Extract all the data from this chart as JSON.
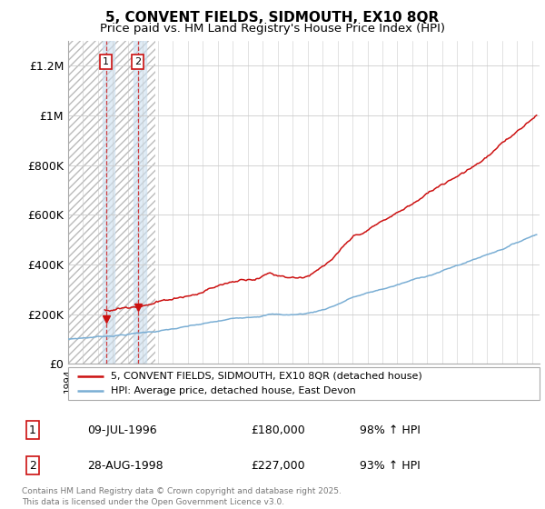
{
  "title": "5, CONVENT FIELDS, SIDMOUTH, EX10 8QR",
  "subtitle": "Price paid vs. HM Land Registry's House Price Index (HPI)",
  "ylabel_ticks": [
    "£0",
    "£200K",
    "£400K",
    "£600K",
    "£800K",
    "£1M",
    "£1.2M"
  ],
  "ylim": [
    0,
    1300000
  ],
  "xlim_start": 1994.0,
  "xlim_end": 2025.5,
  "purchases": [
    {
      "label": "1",
      "date_num": 1996.52,
      "price": 180000,
      "text": "09-JUL-1996",
      "amount": "£180,000",
      "hpi": "98% ↑ HPI"
    },
    {
      "label": "2",
      "date_num": 1998.65,
      "price": 227000,
      "text": "28-AUG-1998",
      "amount": "£227,000",
      "hpi": "93% ↑ HPI"
    }
  ],
  "hpi_color": "#7aaed4",
  "price_color": "#cc1111",
  "shade_end": 1999.8,
  "legend_label_price": "5, CONVENT FIELDS, SIDMOUTH, EX10 8QR (detached house)",
  "legend_label_hpi": "HPI: Average price, detached house, East Devon",
  "footer": "Contains HM Land Registry data © Crown copyright and database right 2025.\nThis data is licensed under the Open Government Licence v3.0.",
  "title_fontsize": 11,
  "subtitle_fontsize": 9.5
}
